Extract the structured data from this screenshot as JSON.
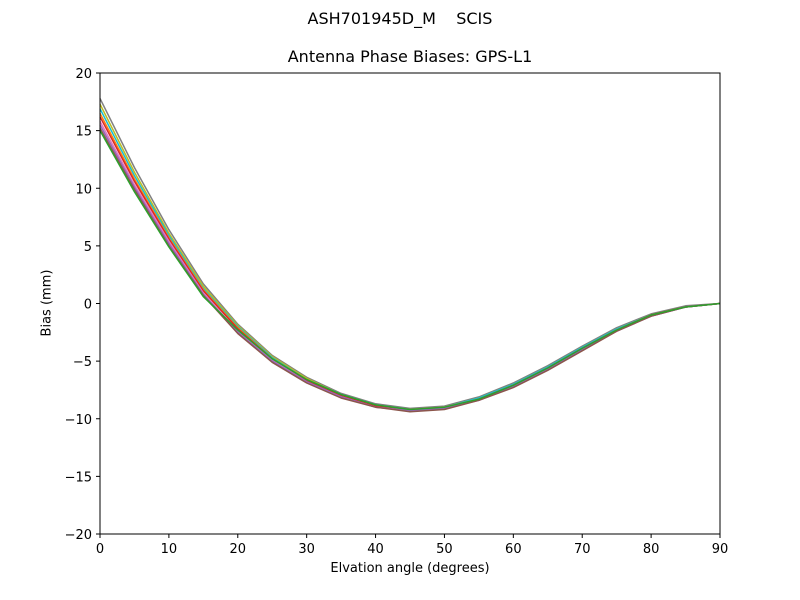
{
  "figure": {
    "suptitle": "ASH701945D_M    SCIS",
    "title": "Antenna Phase Biases: GPS-L1",
    "xlabel": "Elvation angle (degrees)",
    "ylabel": "Bias (mm)"
  },
  "chart_data": {
    "type": "line",
    "title": "Antenna Phase Biases: GPS-L1",
    "suptitle": "ASH701945D_M    SCIS",
    "xlabel": "Elvation angle (degrees)",
    "ylabel": "Bias (mm)",
    "xlim": [
      0,
      90
    ],
    "ylim": [
      -20,
      20
    ],
    "xticks": [
      0,
      10,
      20,
      30,
      40,
      50,
      60,
      70,
      80,
      90
    ],
    "yticks": [
      -20,
      -15,
      -10,
      -5,
      0,
      5,
      10,
      15,
      20
    ],
    "ytick_labels": [
      "−20",
      "−15",
      "−10",
      "−5",
      "0",
      "5",
      "10",
      "15",
      "20"
    ],
    "grid": false,
    "legend": null,
    "x": [
      0,
      5,
      10,
      15,
      20,
      25,
      30,
      35,
      40,
      45,
      50,
      55,
      60,
      65,
      70,
      75,
      80,
      85,
      90
    ],
    "series": [
      {
        "name": "azimuth-band-1",
        "color": "#808080",
        "values": [
          17.8,
          11.8,
          6.4,
          1.7,
          -1.8,
          -4.5,
          -6.4,
          -7.8,
          -8.7,
          -9.1,
          -8.9,
          -8.1,
          -6.9,
          -5.4,
          -3.7,
          -2.1,
          -0.9,
          -0.2,
          0.0
        ]
      },
      {
        "name": "azimuth-band-2",
        "color": "#bcbd22",
        "values": [
          17.3,
          11.4,
          6.1,
          1.5,
          -1.9,
          -4.6,
          -6.5,
          -7.9,
          -8.8,
          -9.2,
          -9.0,
          -8.2,
          -7.0,
          -5.5,
          -3.8,
          -2.2,
          -1.0,
          -0.3,
          0.0
        ]
      },
      {
        "name": "azimuth-band-3",
        "color": "#17becf",
        "values": [
          16.9,
          11.1,
          5.9,
          1.3,
          -2.0,
          -4.7,
          -6.6,
          -7.9,
          -8.8,
          -9.2,
          -9.0,
          -8.2,
          -7.0,
          -5.5,
          -3.8,
          -2.2,
          -1.0,
          -0.3,
          0.0
        ]
      },
      {
        "name": "azimuth-band-4",
        "color": "#ff7f0e",
        "values": [
          16.5,
          10.8,
          5.7,
          1.2,
          -2.1,
          -4.8,
          -6.6,
          -8.0,
          -8.9,
          -9.2,
          -9.0,
          -8.3,
          -7.1,
          -5.6,
          -3.9,
          -2.3,
          -1.0,
          -0.3,
          0.0
        ]
      },
      {
        "name": "azimuth-band-5",
        "color": "#d62728",
        "values": [
          16.2,
          10.6,
          5.6,
          1.1,
          -2.2,
          -4.8,
          -6.7,
          -8.0,
          -8.9,
          -9.3,
          -9.1,
          -8.3,
          -7.1,
          -5.6,
          -3.9,
          -2.3,
          -1.0,
          -0.3,
          0.0
        ]
      },
      {
        "name": "azimuth-band-6",
        "color": "#e377c2",
        "values": [
          15.8,
          10.3,
          5.4,
          0.9,
          -2.4,
          -4.9,
          -6.8,
          -8.1,
          -9.0,
          -9.3,
          -9.1,
          -8.4,
          -7.2,
          -5.7,
          -4.0,
          -2.3,
          -1.1,
          -0.3,
          0.0
        ]
      },
      {
        "name": "azimuth-band-7",
        "color": "#9467bd",
        "values": [
          15.5,
          10.1,
          5.2,
          0.8,
          -2.5,
          -5.0,
          -6.8,
          -8.1,
          -9.0,
          -9.3,
          -9.1,
          -8.4,
          -7.2,
          -5.7,
          -4.0,
          -2.4,
          -1.1,
          -0.3,
          0.0
        ]
      },
      {
        "name": "azimuth-band-8",
        "color": "#8c564b",
        "values": [
          15.2,
          9.9,
          5.0,
          0.7,
          -2.6,
          -5.1,
          -6.9,
          -8.2,
          -9.0,
          -9.4,
          -9.2,
          -8.4,
          -7.3,
          -5.8,
          -4.1,
          -2.4,
          -1.1,
          -0.3,
          0.0
        ]
      },
      {
        "name": "azimuth-band-9",
        "color": "#2ca02c",
        "values": [
          15.0,
          9.7,
          4.9,
          0.6,
          -2.3,
          -4.8,
          -6.6,
          -7.9,
          -8.8,
          -9.2,
          -9.0,
          -8.3,
          -7.1,
          -5.6,
          -3.9,
          -2.3,
          -1.0,
          -0.3,
          0.0
        ]
      }
    ]
  }
}
